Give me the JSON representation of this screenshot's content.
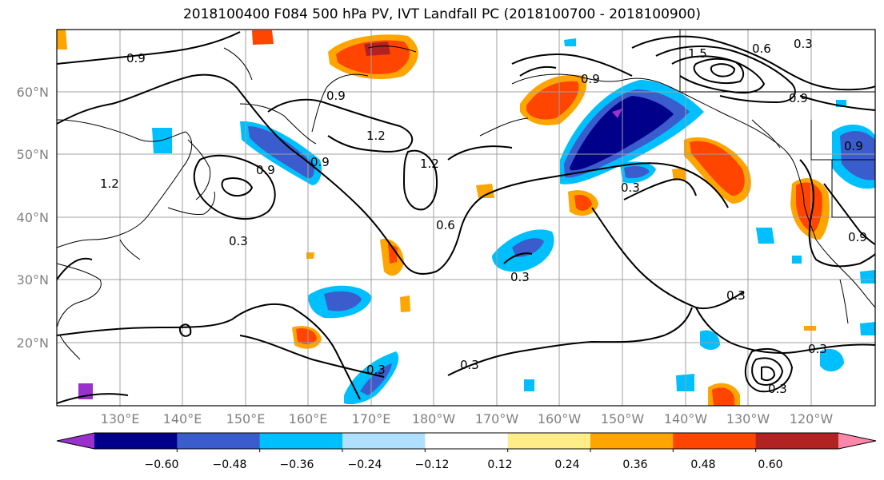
{
  "title": "2018100400 F084 500 hPa PV, IVT Landfall PC (2018100700 - 2018100900)",
  "lat_labels": [
    "60°N",
    "50°N",
    "40°N",
    "30°N",
    "20°N"
  ],
  "lon_labels": [
    "130°E",
    "140°E",
    "150°E",
    "160°E",
    "170°E",
    "180°W",
    "170°W",
    "160°W",
    "150°W",
    "140°W",
    "130°W",
    "120°W"
  ],
  "contour_labels": [
    "0.9",
    "0.6",
    "0.3",
    "1.2",
    "0.9",
    "0.9",
    "1.2",
    "0.9",
    "0.6",
    "1.2",
    "0.9",
    "0.3",
    "0.3",
    "0.3",
    "0.3",
    "0.3",
    "0.3",
    "0.3",
    "0.9",
    "0.9",
    "1.5",
    "0.9",
    "0.3"
  ],
  "colorbar": {
    "ticks": [
      "−0.60",
      "−0.48",
      "−0.36",
      "−0.24",
      "−0.12",
      "0.12",
      "0.24",
      "0.36",
      "0.48",
      "0.60"
    ],
    "colors": [
      "#9932cc",
      "#00008b",
      "#3a5ccc",
      "#00bfff",
      "#b0e0ff",
      "#ffffff",
      "#ffee88",
      "#ffa500",
      "#ff4500",
      "#b22222",
      "#ff88aa"
    ]
  },
  "colors": {
    "neg_strong": "#00008b",
    "neg_mid": "#3a5ccc",
    "neg_light": "#00bfff",
    "neg_pale": "#b0e0ff",
    "pos_pale": "#ffee88",
    "pos_light": "#ffa500",
    "pos_mid": "#ff4500",
    "pos_strong": "#b22222"
  }
}
